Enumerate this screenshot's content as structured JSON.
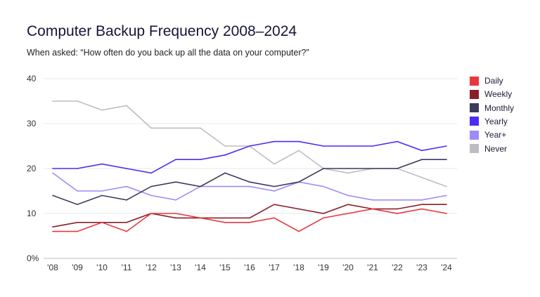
{
  "chart_data": {
    "type": "line",
    "title": "Computer Backup Frequency 2008–2024",
    "subtitle": "When asked: “How often do you back up all the data on your computer?”",
    "categories": [
      "'08",
      "'09",
      "'10",
      "'11",
      "'12",
      "'13",
      "'14",
      "'15",
      "'16",
      "'17",
      "'18",
      "'19",
      "'20",
      "'21",
      "'22",
      "'23",
      "'24"
    ],
    "ylim": [
      0,
      40
    ],
    "yticks": [
      {
        "v": 0,
        "label": "0%"
      },
      {
        "v": 10,
        "label": "10"
      },
      {
        "v": 20,
        "label": "20"
      },
      {
        "v": 30,
        "label": "30"
      },
      {
        "v": 40,
        "label": "40"
      }
    ],
    "grid": true,
    "legend_position": "right",
    "series": [
      {
        "name": "Daily",
        "color": "#e8383d",
        "values": [
          6,
          6,
          8,
          6,
          10,
          10,
          9,
          8,
          8,
          9,
          6,
          9,
          10,
          11,
          10,
          11,
          10
        ]
      },
      {
        "name": "Weekly",
        "color": "#8b1e2b",
        "values": [
          7,
          8,
          8,
          8,
          10,
          9,
          9,
          9,
          9,
          12,
          11,
          10,
          12,
          11,
          11,
          12,
          12
        ]
      },
      {
        "name": "Monthly",
        "color": "#3a3a5e",
        "values": [
          14,
          12,
          14,
          13,
          16,
          17,
          16,
          19,
          17,
          16,
          17,
          20,
          20,
          20,
          20,
          22,
          22
        ]
      },
      {
        "name": "Yearly",
        "color": "#4b2cf5",
        "values": [
          20,
          20,
          21,
          20,
          19,
          22,
          22,
          23,
          25,
          26,
          26,
          25,
          25,
          25,
          26,
          24,
          25
        ]
      },
      {
        "name": "Year+",
        "color": "#9d8cf7",
        "values": [
          19,
          15,
          15,
          16,
          14,
          13,
          16,
          16,
          16,
          15,
          17,
          16,
          14,
          13,
          13,
          13,
          14
        ]
      },
      {
        "name": "Never",
        "color": "#bdbdc3",
        "values": [
          35,
          35,
          33,
          34,
          29,
          29,
          29,
          25,
          25,
          21,
          24,
          20,
          19,
          20,
          20,
          18,
          16
        ]
      }
    ]
  }
}
